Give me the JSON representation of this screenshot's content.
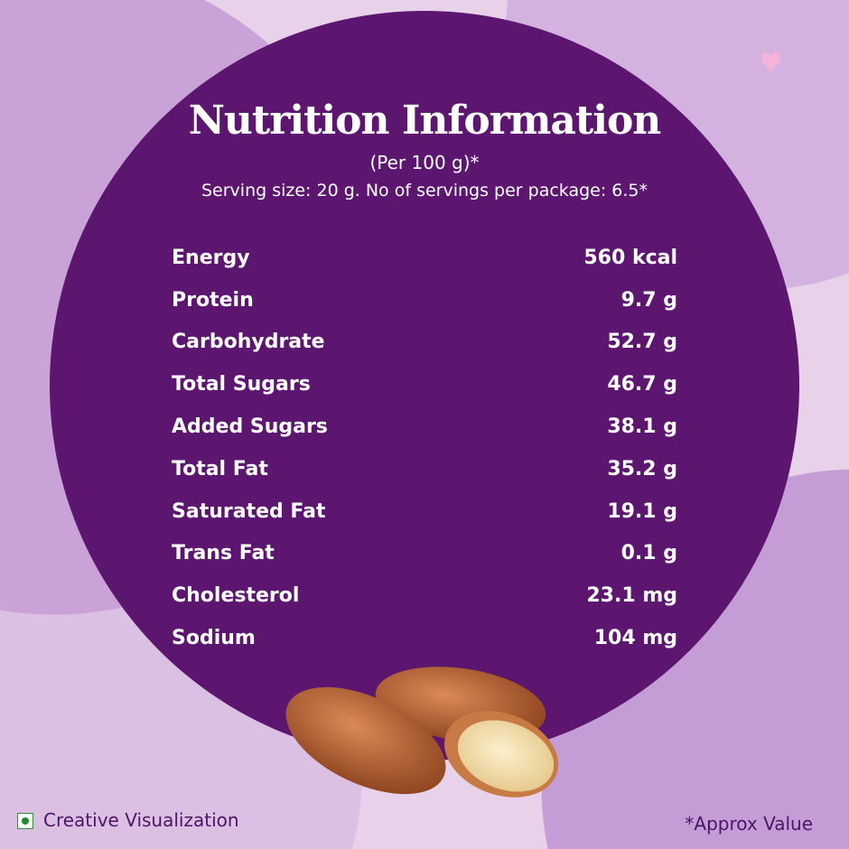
{
  "title": "Nutrition Information",
  "per": "(Per 100 g)*",
  "serving": "Serving size: 20 g. No of servings per package: 6.5*",
  "nutrients": [
    {
      "name": "Energy",
      "value": "560 kcal"
    },
    {
      "name": "Protein",
      "value": "9.7 g"
    },
    {
      "name": "Carbohydrate",
      "value": "52.7 g"
    },
    {
      "name": "Total Sugars",
      "value": "46.7 g"
    },
    {
      "name": "Added Sugars",
      "value": "38.1 g"
    },
    {
      "name": "Total Fat",
      "value": "35.2 g"
    },
    {
      "name": "Saturated Fat",
      "value": "19.1 g"
    },
    {
      "name": "Trans Fat",
      "value": "0.1 g"
    },
    {
      "name": "Cholesterol",
      "value": "23.1 mg"
    },
    {
      "name": "Sodium",
      "value": "104 mg"
    }
  ],
  "footer": {
    "left": "Creative Visualization",
    "right": "*Approx Value"
  },
  "colors": {
    "circle": "#5c1670",
    "background": "#e7d2ea",
    "text_footer": "#4d1468",
    "veg_mark": "#1e8a2e"
  },
  "icons": {
    "heart": "heart-icon",
    "veg": "veg-symbol-icon",
    "almonds": "almonds-image"
  }
}
